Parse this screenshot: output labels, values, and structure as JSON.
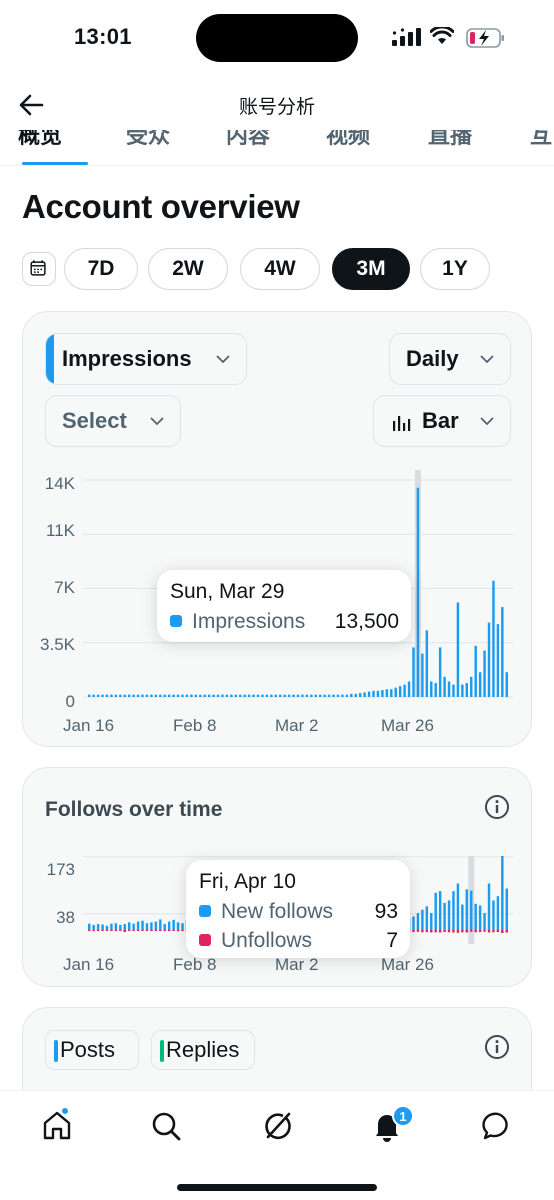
{
  "status_bar": {
    "time": "13:01"
  },
  "nav": {
    "title": "账号分析"
  },
  "tabs": [
    "概览",
    "受众",
    "内容",
    "视频",
    "直播",
    "互"
  ],
  "page_title": "Account overview",
  "ranges": {
    "items": [
      "7D",
      "2W",
      "4W",
      "3M",
      "1Y"
    ],
    "selected": "3M"
  },
  "impressions_card": {
    "metric_dropdown": "Impressions",
    "interval_dropdown": "Daily",
    "compare_dropdown": "Select",
    "chart_type_dropdown": "Bar",
    "accent_color": "#1d9bf0",
    "tooltip": {
      "date": "Sun, Mar 29",
      "label": "Impressions",
      "value": "13,500"
    }
  },
  "follows_card": {
    "title": "Follows over time",
    "tooltip": {
      "date": "Fri, Apr 10",
      "new_label": "New follows",
      "new_value": "93",
      "unf_label": "Unfollows",
      "unf_value": "7"
    }
  },
  "posts_card": {
    "chips": [
      {
        "label": "Posts",
        "color": "#1d9bf0"
      },
      {
        "label": "Replies",
        "color": "#00ba7c"
      }
    ]
  },
  "bottom_nav": {
    "notification_count": "1"
  },
  "chart_data": [
    {
      "type": "bar",
      "series_color": "#1d9bf0",
      "x_tick_labels": [
        "Jan 16",
        "Feb 8",
        "Mar 2",
        "Mar 26"
      ],
      "y_tick_labels": [
        "14K",
        "11K",
        "7K",
        "3.5K",
        "0"
      ],
      "y_ticks": [
        14000,
        10500,
        7000,
        3500,
        0
      ],
      "ylim": [
        0,
        14000
      ],
      "highlight_index": 74,
      "values": [
        150,
        150,
        150,
        150,
        150,
        150,
        150,
        150,
        150,
        150,
        150,
        150,
        150,
        150,
        150,
        150,
        150,
        150,
        150,
        150,
        150,
        150,
        150,
        150,
        150,
        150,
        150,
        150,
        150,
        150,
        150,
        150,
        150,
        150,
        150,
        150,
        150,
        150,
        150,
        150,
        150,
        150,
        150,
        150,
        150,
        150,
        150,
        150,
        150,
        150,
        150,
        150,
        150,
        150,
        150,
        150,
        150,
        150,
        150,
        200,
        200,
        250,
        300,
        350,
        400,
        400,
        450,
        500,
        500,
        600,
        700,
        800,
        1000,
        3200,
        13500,
        2800,
        4300,
        1000,
        900,
        3200,
        1300,
        1000,
        800,
        6100,
        800,
        900,
        1300,
        3300,
        1600,
        3000,
        4800,
        7500,
        4700,
        5800,
        1600
      ]
    },
    {
      "type": "bar",
      "series": [
        {
          "name": "New follows",
          "color": "#1d9bf0"
        },
        {
          "name": "Unfollows",
          "color": "#e0245e"
        }
      ],
      "x_tick_labels": [
        "Jan 16",
        "Feb 8",
        "Mar 2",
        "Mar 26"
      ],
      "y_tick_labels": [
        "173",
        "38"
      ],
      "y_ticks": [
        173,
        38
      ],
      "ylim": [
        -20,
        175
      ],
      "highlight_index": 86,
      "new_follows": [
        15,
        12,
        14,
        13,
        10,
        15,
        16,
        12,
        14,
        18,
        15,
        20,
        22,
        16,
        18,
        20,
        25,
        14,
        20,
        24,
        18,
        16,
        22,
        20,
        22,
        24,
        20,
        18,
        25,
        22,
        16,
        20,
        18,
        14,
        22,
        26,
        20,
        18,
        24,
        20,
        22,
        18,
        20,
        16,
        24,
        22,
        20,
        18,
        16,
        22,
        20,
        18,
        24,
        20,
        22,
        26,
        18,
        20,
        24,
        22,
        20,
        26,
        30,
        22,
        24,
        28,
        30,
        26,
        24,
        30,
        34,
        30,
        28,
        32,
        40,
        48,
        56,
        40,
        88,
        92,
        64,
        70,
        92,
        110,
        60,
        96,
        93,
        62,
        58,
        40,
        110,
        70,
        80,
        175,
        98
      ],
      "unfollows": [
        3,
        2,
        3,
        4,
        2,
        3,
        2,
        3,
        8,
        4,
        3,
        2,
        3,
        4,
        3,
        2,
        3,
        4,
        3,
        2,
        5,
        3,
        4,
        3,
        2,
        3,
        4,
        3,
        2,
        3,
        4,
        3,
        2,
        3,
        4,
        3,
        2,
        3,
        4,
        3,
        2,
        3,
        4,
        3,
        2,
        3,
        4,
        3,
        2,
        3,
        4,
        3,
        2,
        3,
        4,
        3,
        2,
        3,
        4,
        3,
        2,
        3,
        4,
        5,
        4,
        5,
        6,
        5,
        6,
        7,
        6,
        8,
        7,
        8,
        7,
        9,
        8,
        10,
        9,
        10,
        8,
        9,
        10,
        11,
        9,
        10,
        7,
        9,
        8,
        7,
        10,
        9,
        8,
        12,
        10
      ]
    }
  ]
}
